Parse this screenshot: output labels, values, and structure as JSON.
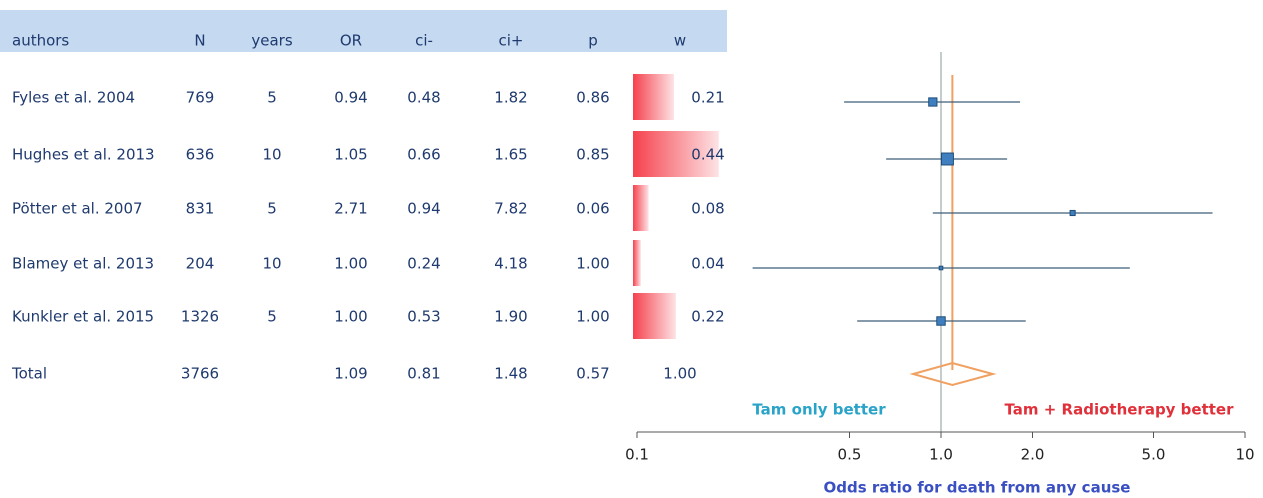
{
  "chart_data": {
    "type": "forest",
    "columns": [
      "authors",
      "N",
      "years",
      "OR",
      "ci-",
      "ci+",
      "p",
      "w"
    ],
    "authors": [
      "Fyles et al. 2004",
      "Hughes et al. 2013",
      "Pötter et al. 2007",
      "Blamey et al. 2013",
      "Kunkler et al. 2015",
      "Total"
    ],
    "N": [
      769,
      636,
      831,
      204,
      1326,
      3766
    ],
    "years": [
      5,
      10,
      5,
      10,
      5,
      null
    ],
    "OR": {
      "values": [
        0.94,
        1.05,
        2.71,
        1.0,
        1.0,
        1.09
      ],
      "value_labels": [
        "0.94",
        "1.05",
        "2.71",
        "1.00",
        "1.00",
        "1.09"
      ]
    },
    "ci_low": {
      "values": [
        0.48,
        0.66,
        0.94,
        0.24,
        0.53,
        0.81
      ],
      "value_labels": [
        "0.48",
        "0.66",
        "0.94",
        "0.24",
        "0.53",
        "0.81"
      ]
    },
    "ci_high": {
      "values": [
        1.82,
        1.65,
        7.82,
        4.18,
        1.9,
        1.48
      ],
      "value_labels": [
        "1.82",
        "1.65",
        "7.82",
        "4.18",
        "1.90",
        "1.48"
      ]
    },
    "p": {
      "values": [
        0.86,
        0.85,
        0.06,
        1.0,
        1.0,
        0.57
      ],
      "value_labels": [
        "0.86",
        "0.85",
        "0.06",
        "1.00",
        "1.00",
        "0.57"
      ]
    },
    "w": {
      "values": [
        0.21,
        0.44,
        0.08,
        0.04,
        0.22,
        1.0
      ],
      "value_labels": [
        "0.21",
        "0.44",
        "0.08",
        "0.04",
        "0.22",
        "1.00"
      ]
    },
    "x_scale": "log",
    "xlim": [
      0.1,
      10
    ],
    "xticks": [
      0.1,
      0.5,
      {
        "value": 1,
        "label": "1.0"
      },
      {
        "value": 2,
        "label": "2.0"
      },
      {
        "value": 5,
        "label": "5.0"
      },
      10
    ],
    "reference": 1,
    "xlabel": "Odds ratio for death from any cause",
    "annotations": [
      {
        "text": "Tam only better",
        "color": "#2aa3c9"
      },
      {
        "text": "Tam + Radiotherapy better",
        "color": "#e0313b"
      }
    ],
    "marker_color": "#3f7fbf",
    "ci_color": "#3c5e78",
    "pooled_color": "#f0a060"
  }
}
